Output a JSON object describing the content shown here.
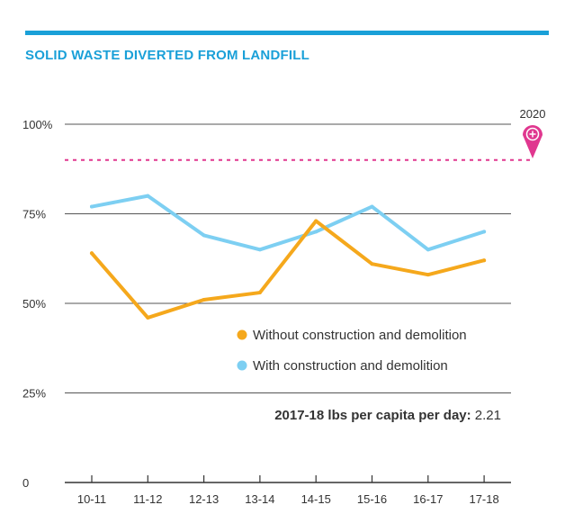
{
  "chart_data": {
    "type": "line",
    "title": "SOLID WASTE DIVERTED FROM LANDFILL",
    "categories": [
      "10-11",
      "11-12",
      "12-13",
      "13-14",
      "14-15",
      "15-16",
      "16-17",
      "17-18"
    ],
    "series": [
      {
        "name": "Without construction and demolition",
        "color": "#f5a81c",
        "values": [
          64,
          46,
          51,
          53,
          73,
          61,
          58,
          62
        ]
      },
      {
        "name": "With construction and demolition",
        "color": "#7dcff2",
        "values": [
          77,
          80,
          69,
          65,
          70,
          77,
          65,
          70
        ]
      }
    ],
    "yticks": [
      {
        "value": 0,
        "label": "0"
      },
      {
        "value": 25,
        "label": "25%"
      },
      {
        "value": 50,
        "label": "50%"
      },
      {
        "value": 75,
        "label": "75%"
      },
      {
        "value": 100,
        "label": "100%"
      }
    ],
    "ylim": [
      0,
      100
    ],
    "grid": true,
    "legend_position": "lower-right",
    "target": {
      "label": "2020",
      "value": 90,
      "color": "#e0378f"
    },
    "annotation": {
      "label": "2017-18 lbs per capita per day:",
      "value": "2.21"
    },
    "colors": {
      "accent": "#1aa0d8",
      "grid": "#555555",
      "axis": "#333333"
    }
  }
}
